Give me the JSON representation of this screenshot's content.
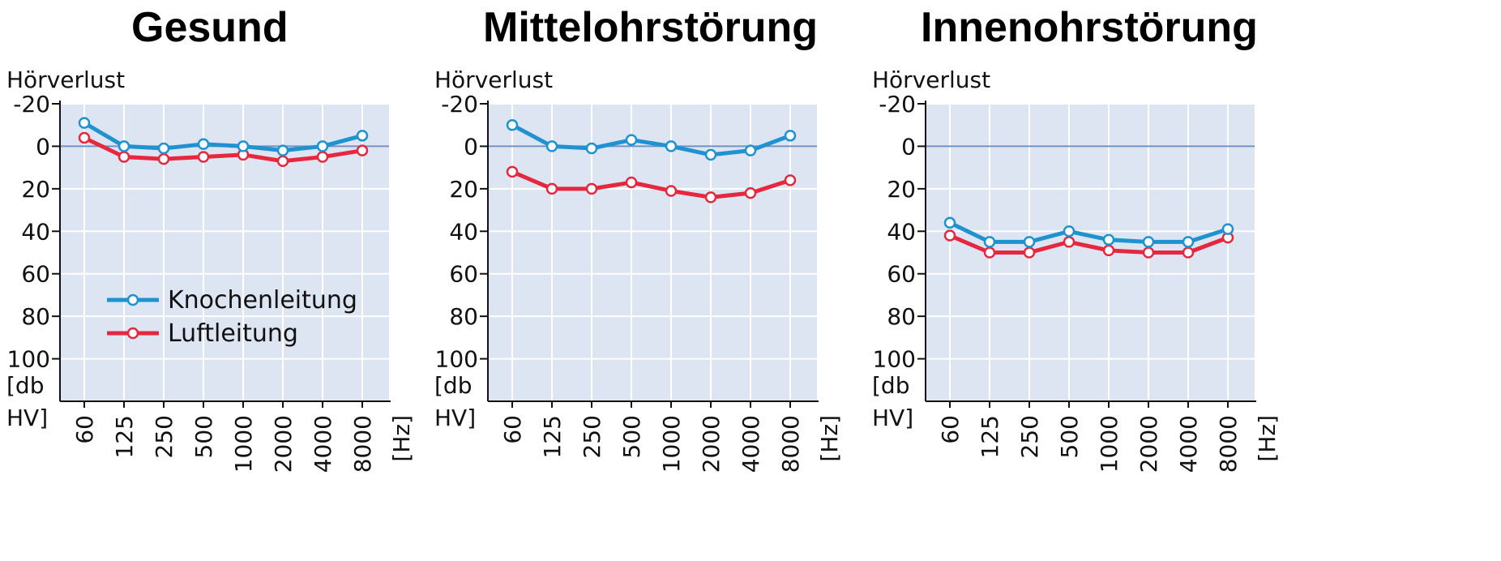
{
  "colors": {
    "plot_bg": "#dde4f2",
    "grid": "#ffffff",
    "zero_line": "#6f93c9",
    "knochen": "#1f93d0",
    "luft": "#e6283f",
    "axis": "#111111"
  },
  "chart_data": [
    {
      "type": "line",
      "title": "Gesund",
      "ylabel": "Hörverlust",
      "yunit_line1": "[db",
      "yunit_line2": "HV]",
      "xunit": "[Hz]",
      "ylim": [
        -20,
        120
      ],
      "yticks": [
        "-20",
        "0",
        "20",
        "40",
        "60",
        "80",
        "100"
      ],
      "ytick_values": [
        -20,
        0,
        20,
        40,
        60,
        80,
        100
      ],
      "y_inverted": true,
      "categories": [
        "60",
        "125",
        "250",
        "500",
        "1000",
        "2000",
        "4000",
        "8000"
      ],
      "legend": "inside",
      "series": [
        {
          "name": "Knochenleitung",
          "color_key": "knochen",
          "values": [
            -11,
            0,
            1,
            -1,
            0,
            2,
            0,
            -5
          ]
        },
        {
          "name": "Luftleitung",
          "color_key": "luft",
          "values": [
            -4,
            5,
            6,
            5,
            4,
            7,
            5,
            2
          ]
        }
      ]
    },
    {
      "type": "line",
      "title": "Mittelohrstörung",
      "ylabel": "Hörverlust",
      "yunit_line1": "[db",
      "yunit_line2": "HV]",
      "xunit": "[Hz]",
      "ylim": [
        -20,
        120
      ],
      "yticks": [
        "-20",
        "0",
        "20",
        "40",
        "60",
        "80",
        "100"
      ],
      "ytick_values": [
        -20,
        0,
        20,
        40,
        60,
        80,
        100
      ],
      "y_inverted": true,
      "categories": [
        "60",
        "125",
        "250",
        "500",
        "1000",
        "2000",
        "4000",
        "8000"
      ],
      "legend": "none",
      "series": [
        {
          "name": "Knochenleitung",
          "color_key": "knochen",
          "values": [
            -10,
            0,
            1,
            -3,
            0,
            4,
            2,
            -5
          ]
        },
        {
          "name": "Luftleitung",
          "color_key": "luft",
          "values": [
            12,
            20,
            20,
            17,
            21,
            24,
            22,
            16
          ]
        }
      ]
    },
    {
      "type": "line",
      "title": "Innenohrstörung",
      "ylabel": "Hörverlust",
      "yunit_line1": "[db",
      "yunit_line2": "HV]",
      "xunit": "[Hz]",
      "ylim": [
        -20,
        120
      ],
      "yticks": [
        "-20",
        "0",
        "20",
        "40",
        "60",
        "80",
        "100"
      ],
      "ytick_values": [
        -20,
        0,
        20,
        40,
        60,
        80,
        100
      ],
      "y_inverted": true,
      "categories": [
        "60",
        "125",
        "250",
        "500",
        "1000",
        "2000",
        "4000",
        "8000"
      ],
      "legend": "none",
      "series": [
        {
          "name": "Knochenleitung",
          "color_key": "knochen",
          "values": [
            36,
            45,
            45,
            40,
            44,
            45,
            45,
            39
          ]
        },
        {
          "name": "Luftleitung",
          "color_key": "luft",
          "values": [
            42,
            50,
            50,
            45,
            49,
            50,
            50,
            43
          ]
        }
      ]
    }
  ]
}
